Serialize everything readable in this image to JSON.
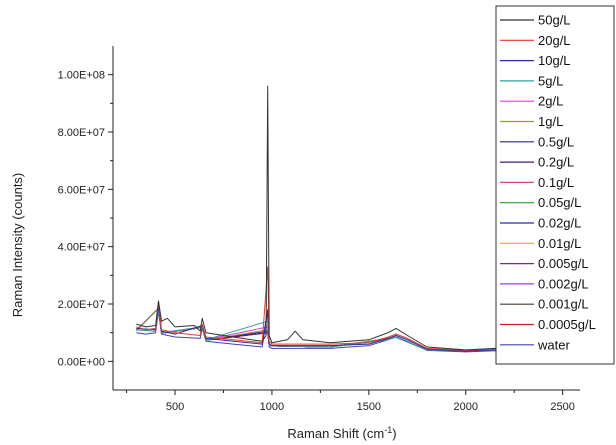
{
  "chart_data": {
    "type": "line",
    "xlabel": "Raman Shift (cm",
    "xlabel_sup": "-1",
    "xlabel_end": ")",
    "ylabel": "Raman Intensity (counts)",
    "xlim": [
      180,
      2280
    ],
    "ylim": [
      -10000000,
      110000000
    ],
    "x_ticks": [
      500,
      1000,
      1500,
      2000,
      2500
    ],
    "y_ticks": [
      0,
      20000000,
      40000000,
      60000000,
      80000000,
      100000000
    ],
    "y_tick_labels": [
      "0.00E+00",
      "2.00E+07",
      "4.00E+07",
      "6.00E+07",
      "8.00E+07",
      "1.00E+08"
    ],
    "legend_position": "top-right",
    "series": [
      {
        "name": "50g/L",
        "color": "#333333",
        "points": [
          [
            300,
            13000000
          ],
          [
            350,
            12000000
          ],
          [
            400,
            12500000
          ],
          [
            415,
            21000000
          ],
          [
            430,
            14000000
          ],
          [
            460,
            15000000
          ],
          [
            500,
            12000000
          ],
          [
            600,
            12500000
          ],
          [
            630,
            10500000
          ],
          [
            640,
            15000000
          ],
          [
            660,
            10000000
          ],
          [
            800,
            8500000
          ],
          [
            950,
            7000000
          ],
          [
            970,
            9000000
          ],
          [
            978,
            96000000
          ],
          [
            986,
            9000000
          ],
          [
            1000,
            6500000
          ],
          [
            1080,
            7500000
          ],
          [
            1120,
            10500000
          ],
          [
            1160,
            7500000
          ],
          [
            1300,
            6500000
          ],
          [
            1500,
            7500000
          ],
          [
            1600,
            10000000
          ],
          [
            1640,
            11500000
          ],
          [
            1700,
            9000000
          ],
          [
            1800,
            5000000
          ],
          [
            2000,
            4000000
          ],
          [
            2150,
            4500000
          ],
          [
            2280,
            4000000
          ]
        ]
      },
      {
        "name": "20g/L",
        "color": "#e83a2a",
        "points": [
          [
            300,
            12000000
          ],
          [
            350,
            11000000
          ],
          [
            400,
            11500000
          ],
          [
            415,
            21000000
          ],
          [
            430,
            11000000
          ],
          [
            500,
            10000000
          ],
          [
            630,
            9000000
          ],
          [
            640,
            13000000
          ],
          [
            660,
            8500000
          ],
          [
            800,
            7500000
          ],
          [
            950,
            6500000
          ],
          [
            978,
            33000000
          ],
          [
            986,
            7000000
          ],
          [
            1000,
            6000000
          ],
          [
            1300,
            6000000
          ],
          [
            1500,
            6500000
          ],
          [
            1600,
            8500000
          ],
          [
            1640,
            9500000
          ],
          [
            1700,
            8000000
          ],
          [
            1800,
            4500000
          ],
          [
            2000,
            3800000
          ],
          [
            2150,
            4200000
          ],
          [
            2280,
            3800000
          ]
        ]
      },
      {
        "name": "10g/L",
        "color": "#2a2aa0",
        "points": [
          [
            300,
            11500000
          ],
          [
            400,
            11000000
          ],
          [
            415,
            20000000
          ],
          [
            430,
            10500000
          ],
          [
            500,
            9500000
          ],
          [
            640,
            12500000
          ],
          [
            660,
            8000000
          ],
          [
            800,
            7000000
          ],
          [
            950,
            6000000
          ],
          [
            978,
            18000000
          ],
          [
            986,
            6000000
          ],
          [
            1000,
            5500000
          ],
          [
            1300,
            5500000
          ],
          [
            1500,
            6000000
          ],
          [
            1600,
            8000000
          ],
          [
            1640,
            9000000
          ],
          [
            1700,
            7500000
          ],
          [
            1800,
            4300000
          ],
          [
            2000,
            3600000
          ],
          [
            2150,
            4000000
          ],
          [
            2280,
            3600000
          ]
        ]
      },
      {
        "name": "5g/L",
        "color": "#2aa0a0",
        "points": [
          [
            300,
            11000000
          ],
          [
            400,
            10500000
          ],
          [
            415,
            19000000
          ],
          [
            430,
            10000000
          ],
          [
            640,
            12000000
          ],
          [
            660,
            7500000
          ],
          [
            978,
            14000000
          ],
          [
            986,
            5500000
          ],
          [
            1300,
            5000000
          ],
          [
            1600,
            7500000
          ],
          [
            1640,
            8500000
          ],
          [
            1800,
            4000000
          ],
          [
            2150,
            3800000
          ],
          [
            2280,
            3400000
          ]
        ]
      },
      {
        "name": "2g/L",
        "color": "#e040e0",
        "points": [
          [
            300,
            11000000
          ],
          [
            400,
            10500000
          ],
          [
            415,
            19000000
          ],
          [
            430,
            10000000
          ],
          [
            640,
            12000000
          ],
          [
            660,
            7500000
          ],
          [
            978,
            12000000
          ],
          [
            986,
            5500000
          ],
          [
            1300,
            5000000
          ],
          [
            1600,
            7500000
          ],
          [
            1640,
            8500000
          ],
          [
            1800,
            4000000
          ],
          [
            2150,
            3800000
          ],
          [
            2280,
            3400000
          ]
        ]
      },
      {
        "name": "1g/L",
        "color": "#9a9a40",
        "points": [
          [
            300,
            10800000
          ],
          [
            415,
            18500000
          ],
          [
            430,
            9800000
          ],
          [
            640,
            11800000
          ],
          [
            660,
            7400000
          ],
          [
            978,
            11000000
          ],
          [
            986,
            5400000
          ],
          [
            1300,
            5000000
          ],
          [
            1640,
            8400000
          ],
          [
            1800,
            4000000
          ],
          [
            2150,
            3800000
          ],
          [
            2280,
            3400000
          ]
        ]
      },
      {
        "name": "0.5g/L",
        "color": "#2a2a80",
        "points": [
          [
            300,
            10800000
          ],
          [
            415,
            18500000
          ],
          [
            430,
            9800000
          ],
          [
            640,
            11800000
          ],
          [
            660,
            7400000
          ],
          [
            978,
            10500000
          ],
          [
            986,
            5400000
          ],
          [
            1300,
            5000000
          ],
          [
            1640,
            8400000
          ],
          [
            1800,
            4000000
          ],
          [
            2150,
            3800000
          ],
          [
            2280,
            3400000
          ]
        ]
      },
      {
        "name": "0.2g/L",
        "color": "#4a1a6a",
        "points": [
          [
            300,
            10800000
          ],
          [
            415,
            18500000
          ],
          [
            430,
            9800000
          ],
          [
            640,
            11800000
          ],
          [
            660,
            7400000
          ],
          [
            978,
            10000000
          ],
          [
            986,
            5400000
          ],
          [
            1300,
            5000000
          ],
          [
            1640,
            8400000
          ],
          [
            1800,
            4000000
          ],
          [
            2150,
            3800000
          ],
          [
            2280,
            3400000
          ]
        ]
      },
      {
        "name": "0.1g/L",
        "color": "#e0408a",
        "points": [
          [
            300,
            10800000
          ],
          [
            415,
            18500000
          ],
          [
            430,
            9800000
          ],
          [
            640,
            11800000
          ],
          [
            660,
            7400000
          ],
          [
            978,
            10000000
          ],
          [
            986,
            5400000
          ],
          [
            1300,
            5000000
          ],
          [
            1640,
            8400000
          ],
          [
            1800,
            4000000
          ],
          [
            2150,
            3800000
          ],
          [
            2280,
            3400000
          ]
        ]
      },
      {
        "name": "0.05g/L",
        "color": "#20a020",
        "points": [
          [
            300,
            10800000
          ],
          [
            415,
            18500000
          ],
          [
            430,
            9800000
          ],
          [
            640,
            11800000
          ],
          [
            660,
            7400000
          ],
          [
            978,
            10000000
          ],
          [
            986,
            5400000
          ],
          [
            1300,
            5000000
          ],
          [
            1640,
            8400000
          ],
          [
            1800,
            4000000
          ],
          [
            2150,
            3800000
          ],
          [
            2280,
            3400000
          ]
        ]
      },
      {
        "name": "0.02g/L",
        "color": "#2a2ab0",
        "points": [
          [
            300,
            10800000
          ],
          [
            415,
            18500000
          ],
          [
            430,
            9800000
          ],
          [
            640,
            11800000
          ],
          [
            660,
            7400000
          ],
          [
            978,
            10000000
          ],
          [
            986,
            5400000
          ],
          [
            1300,
            5000000
          ],
          [
            1640,
            8400000
          ],
          [
            1800,
            4000000
          ],
          [
            2150,
            3800000
          ],
          [
            2280,
            3400000
          ]
        ]
      },
      {
        "name": "0.01g/L",
        "color": "#f0a040",
        "points": [
          [
            300,
            10800000
          ],
          [
            415,
            18500000
          ],
          [
            430,
            9800000
          ],
          [
            640,
            11800000
          ],
          [
            660,
            7400000
          ],
          [
            978,
            10000000
          ],
          [
            986,
            5400000
          ],
          [
            1300,
            5000000
          ],
          [
            1640,
            8400000
          ],
          [
            1800,
            4000000
          ],
          [
            2150,
            3800000
          ],
          [
            2280,
            3400000
          ]
        ]
      },
      {
        "name": "0.005g/L",
        "color": "#7a2a8a",
        "points": [
          [
            300,
            10800000
          ],
          [
            415,
            18500000
          ],
          [
            430,
            9800000
          ],
          [
            640,
            11800000
          ],
          [
            660,
            7400000
          ],
          [
            978,
            10000000
          ],
          [
            986,
            5400000
          ],
          [
            1300,
            5000000
          ],
          [
            1640,
            8400000
          ],
          [
            1800,
            4000000
          ],
          [
            2150,
            3800000
          ],
          [
            2280,
            3400000
          ]
        ]
      },
      {
        "name": "0.002g/L",
        "color": "#a040e0",
        "points": [
          [
            300,
            10800000
          ],
          [
            415,
            18500000
          ],
          [
            430,
            9800000
          ],
          [
            640,
            11800000
          ],
          [
            660,
            7400000
          ],
          [
            978,
            10000000
          ],
          [
            986,
            5400000
          ],
          [
            1300,
            5000000
          ],
          [
            1640,
            8400000
          ],
          [
            1800,
            4000000
          ],
          [
            2150,
            3800000
          ],
          [
            2280,
            3400000
          ]
        ]
      },
      {
        "name": "0.001g/L",
        "color": "#4a3a2a",
        "points": [
          [
            300,
            10800000
          ],
          [
            415,
            18500000
          ],
          [
            430,
            9800000
          ],
          [
            640,
            11800000
          ],
          [
            660,
            7400000
          ],
          [
            978,
            10000000
          ],
          [
            986,
            5400000
          ],
          [
            1300,
            5000000
          ],
          [
            1640,
            8400000
          ],
          [
            1800,
            4000000
          ],
          [
            2150,
            3800000
          ],
          [
            2280,
            3400000
          ]
        ]
      },
      {
        "name": "0.0005g/L",
        "color": "#d02020",
        "points": [
          [
            300,
            10800000
          ],
          [
            415,
            18500000
          ],
          [
            430,
            9800000
          ],
          [
            640,
            11800000
          ],
          [
            660,
            7400000
          ],
          [
            978,
            10000000
          ],
          [
            986,
            5400000
          ],
          [
            1300,
            5000000
          ],
          [
            1640,
            8400000
          ],
          [
            1800,
            4000000
          ],
          [
            2150,
            3800000
          ],
          [
            2280,
            3400000
          ]
        ]
      },
      {
        "name": "water",
        "color": "#4040c0",
        "points": [
          [
            300,
            10000000
          ],
          [
            350,
            9500000
          ],
          [
            400,
            10000000
          ],
          [
            415,
            17500000
          ],
          [
            430,
            9500000
          ],
          [
            500,
            8500000
          ],
          [
            630,
            8000000
          ],
          [
            640,
            11500000
          ],
          [
            660,
            7000000
          ],
          [
            800,
            6000000
          ],
          [
            950,
            5000000
          ],
          [
            978,
            17000000
          ],
          [
            986,
            5000000
          ],
          [
            1000,
            4500000
          ],
          [
            1300,
            4500000
          ],
          [
            1500,
            5500000
          ],
          [
            1600,
            7500000
          ],
          [
            1640,
            8500000
          ],
          [
            1700,
            7000000
          ],
          [
            1800,
            3800000
          ],
          [
            2000,
            3300000
          ],
          [
            2150,
            3700000
          ],
          [
            2280,
            3300000
          ]
        ]
      }
    ]
  }
}
